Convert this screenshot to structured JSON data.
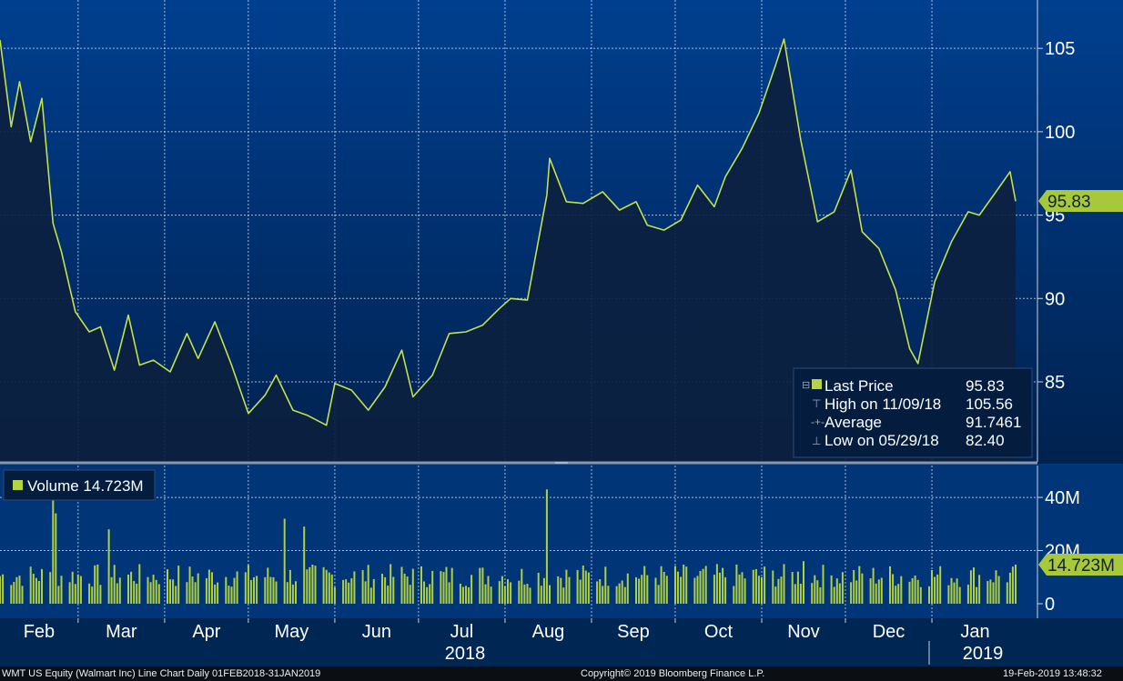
{
  "chart_data": {
    "type": "line",
    "title": "WMT US Equity (Walmart Inc) Line Chart  Daily 01FEB2018-31JAN2019",
    "price": {
      "series_name": "Last Price",
      "last_value": 95.83,
      "last_label": "95.83",
      "ylim": [
        80.2,
        107.9
      ],
      "yticks": [
        85,
        90,
        95,
        100,
        105
      ],
      "ytick_labels": [
        "85",
        "90",
        "95",
        "100",
        "105"
      ],
      "x": [
        "2018-02-01",
        "2018-02-05",
        "2018-02-08",
        "2018-02-12",
        "2018-02-16",
        "2018-02-20",
        "2018-02-23",
        "2018-02-28",
        "2018-03-05",
        "2018-03-09",
        "2018-03-14",
        "2018-03-19",
        "2018-03-23",
        "2018-03-28",
        "2018-04-03",
        "2018-04-09",
        "2018-04-13",
        "2018-04-19",
        "2018-04-25",
        "2018-05-01",
        "2018-05-07",
        "2018-05-11",
        "2018-05-17",
        "2018-05-22",
        "2018-05-29",
        "2018-06-01",
        "2018-06-07",
        "2018-06-13",
        "2018-06-19",
        "2018-06-25",
        "2018-06-29",
        "2018-07-06",
        "2018-07-12",
        "2018-07-18",
        "2018-07-24",
        "2018-07-30",
        "2018-08-03",
        "2018-08-09",
        "2018-08-16",
        "2018-08-17",
        "2018-08-23",
        "2018-08-29",
        "2018-09-05",
        "2018-09-11",
        "2018-09-17",
        "2018-09-21",
        "2018-09-27",
        "2018-10-03",
        "2018-10-09",
        "2018-10-15",
        "2018-10-19",
        "2018-10-25",
        "2018-10-31",
        "2018-11-06",
        "2018-11-09",
        "2018-11-15",
        "2018-11-21",
        "2018-11-27",
        "2018-12-03",
        "2018-12-07",
        "2018-12-13",
        "2018-12-19",
        "2018-12-24",
        "2018-12-27",
        "2019-01-02",
        "2019-01-08",
        "2019-01-14",
        "2019-01-18",
        "2019-01-24",
        "2019-01-29",
        "2019-01-31"
      ],
      "y": [
        105.5,
        100.3,
        103.0,
        99.4,
        102.0,
        94.5,
        92.8,
        89.2,
        88.0,
        88.3,
        85.7,
        89.0,
        86.0,
        86.3,
        85.6,
        87.9,
        86.4,
        88.6,
        86.0,
        83.1,
        84.2,
        85.4,
        83.3,
        83.0,
        82.4,
        84.9,
        84.5,
        83.3,
        84.7,
        86.9,
        84.1,
        85.4,
        87.9,
        88.0,
        88.4,
        89.4,
        90.0,
        89.9,
        96.2,
        98.4,
        95.8,
        95.7,
        96.4,
        95.3,
        95.8,
        94.4,
        94.1,
        94.7,
        96.8,
        95.5,
        97.3,
        99.0,
        101.1,
        104.0,
        105.56,
        99.5,
        94.6,
        95.2,
        97.7,
        94.0,
        93.0,
        90.5,
        87.0,
        86.1,
        91.0,
        93.4,
        95.2,
        95.0,
        96.4,
        97.6,
        95.83
      ]
    },
    "volume": {
      "series_name": "Volume",
      "last_value": 14.723,
      "unit": "M",
      "last_label": "14.723M",
      "ylim": [
        0,
        52
      ],
      "yticks": [
        0,
        20,
        40
      ],
      "ytick_labels": [
        "0",
        "20M",
        "40M"
      ],
      "spikes": [
        {
          "date": "2018-02-20",
          "value": 44
        },
        {
          "date": "2018-02-21",
          "value": 34
        },
        {
          "date": "2018-03-12",
          "value": 28
        },
        {
          "date": "2018-05-14",
          "value": 32
        },
        {
          "date": "2018-05-21",
          "value": 29
        },
        {
          "date": "2018-08-16",
          "value": 43
        },
        {
          "date": "2018-11-16",
          "value": 16
        }
      ]
    },
    "x_month_labels": [
      "Feb",
      "Mar",
      "Apr",
      "May",
      "Jun",
      "Jul",
      "Aug",
      "Sep",
      "Oct",
      "Nov",
      "Dec",
      "Jan"
    ],
    "x_year_labels": [
      "2018",
      "2019"
    ],
    "legend": {
      "last_price_label": "Last Price",
      "last_price_value": "95.83",
      "high_label": "High on 11/09/18",
      "high_value": "105.56",
      "average_label": "Average",
      "average_value": "91.7461",
      "low_label": "Low on 05/29/18",
      "low_value": "82.40",
      "volume_label": "Volume 14.723M"
    },
    "colors": {
      "line": "#c4e04a",
      "bar": "#b0d040",
      "tag_fill": "#a6c83a",
      "background": "#002a60",
      "area_fill": "#0c2140"
    }
  },
  "footer": {
    "left": "WMT US Equity (Walmart Inc) Line Chart  Daily 01FEB2018-31JAN2019",
    "center": "Copyright© 2019 Bloomberg Finance L.P.",
    "right": "19-Feb-2019 13:48:32"
  }
}
